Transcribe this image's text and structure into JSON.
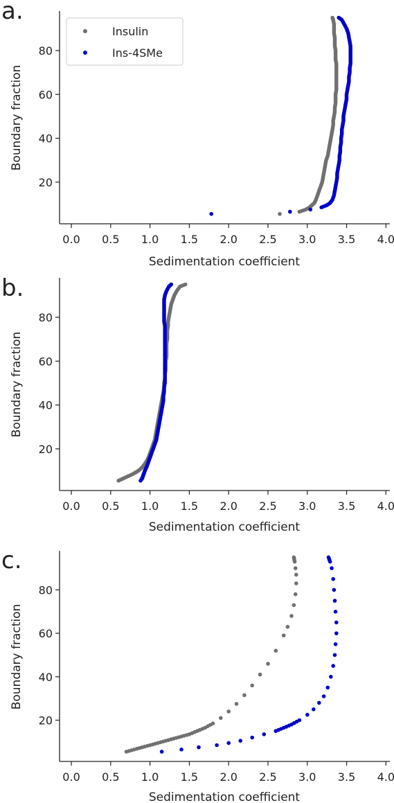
{
  "colors": {
    "insulin": "#707070",
    "ins4sme": "#0000c8",
    "axis": "#222222"
  },
  "chart_data": [
    {
      "type": "scatter",
      "panel_label": "a.",
      "xlabel": "Sedimentation coefficient",
      "ylabel": "Boundary fraction",
      "xlim": [
        -0.15,
        4.05
      ],
      "ylim": [
        1,
        98
      ],
      "xticks": [
        "0.0",
        "0.5",
        "1.0",
        "1.5",
        "2.0",
        "2.5",
        "3.0",
        "3.5",
        "4.0"
      ],
      "yticks": [
        "20",
        "40",
        "60",
        "80"
      ],
      "grid": false,
      "legend": {
        "position": "top-left",
        "entries": [
          "Insulin",
          "Ins-4SMe"
        ]
      },
      "series": [
        {
          "name": "Insulin",
          "color_key": "insulin",
          "points": [
            [
              2.65,
              5.5
            ],
            [
              2.9,
              6.5
            ],
            [
              2.98,
              7.5
            ],
            [
              3.03,
              8.5
            ],
            [
              3.06,
              9.5
            ],
            [
              3.09,
              10.5
            ],
            [
              3.11,
              12
            ],
            [
              3.13,
              14
            ],
            [
              3.15,
              16
            ],
            [
              3.17,
              18
            ],
            [
              3.19,
              20
            ],
            [
              3.2,
              22
            ],
            [
              3.21,
              24
            ],
            [
              3.22,
              26
            ],
            [
              3.23,
              28
            ],
            [
              3.24,
              30
            ],
            [
              3.26,
              32
            ],
            [
              3.27,
              34
            ],
            [
              3.28,
              36
            ],
            [
              3.29,
              38
            ],
            [
              3.3,
              40
            ],
            [
              3.31,
              42
            ],
            [
              3.32,
              44
            ],
            [
              3.33,
              46
            ],
            [
              3.33,
              48
            ],
            [
              3.34,
              50
            ],
            [
              3.35,
              52
            ],
            [
              3.35,
              54
            ],
            [
              3.36,
              56
            ],
            [
              3.36,
              58
            ],
            [
              3.36,
              60
            ],
            [
              3.37,
              62
            ],
            [
              3.37,
              64
            ],
            [
              3.37,
              66
            ],
            [
              3.37,
              68
            ],
            [
              3.37,
              70
            ],
            [
              3.37,
              72
            ],
            [
              3.37,
              74
            ],
            [
              3.36,
              76
            ],
            [
              3.36,
              78
            ],
            [
              3.36,
              80
            ],
            [
              3.35,
              82
            ],
            [
              3.35,
              84
            ],
            [
              3.35,
              86
            ],
            [
              3.34,
              88
            ],
            [
              3.34,
              90
            ],
            [
              3.34,
              92
            ],
            [
              3.33,
              94
            ],
            [
              3.32,
              95
            ]
          ]
        },
        {
          "name": "Ins-4SMe",
          "color_key": "ins4sme",
          "points": [
            [
              1.78,
              5.5
            ],
            [
              2.78,
              6.5
            ],
            [
              3.04,
              7.5
            ],
            [
              3.18,
              8.5
            ],
            [
              3.25,
              9.5
            ],
            [
              3.29,
              10.5
            ],
            [
              3.32,
              12
            ],
            [
              3.34,
              14
            ],
            [
              3.35,
              16
            ],
            [
              3.36,
              18
            ],
            [
              3.37,
              20
            ],
            [
              3.38,
              22
            ],
            [
              3.38,
              24
            ],
            [
              3.39,
              26
            ],
            [
              3.4,
              28
            ],
            [
              3.41,
              30
            ],
            [
              3.41,
              32
            ],
            [
              3.42,
              34
            ],
            [
              3.42,
              36
            ],
            [
              3.43,
              38
            ],
            [
              3.43,
              40
            ],
            [
              3.44,
              42
            ],
            [
              3.44,
              44
            ],
            [
              3.45,
              46
            ],
            [
              3.46,
              48
            ],
            [
              3.46,
              50
            ],
            [
              3.47,
              52
            ],
            [
              3.48,
              54
            ],
            [
              3.49,
              56
            ],
            [
              3.5,
              58
            ],
            [
              3.5,
              60
            ],
            [
              3.51,
              62
            ],
            [
              3.52,
              64
            ],
            [
              3.53,
              66
            ],
            [
              3.53,
              68
            ],
            [
              3.54,
              70
            ],
            [
              3.54,
              72
            ],
            [
              3.55,
              74
            ],
            [
              3.55,
              76
            ],
            [
              3.55,
              78
            ],
            [
              3.55,
              80
            ],
            [
              3.55,
              82
            ],
            [
              3.54,
              84
            ],
            [
              3.53,
              86
            ],
            [
              3.52,
              88
            ],
            [
              3.5,
              90
            ],
            [
              3.47,
              92
            ],
            [
              3.44,
              94
            ],
            [
              3.4,
              95
            ]
          ]
        }
      ]
    },
    {
      "type": "scatter",
      "panel_label": "b.",
      "xlabel": "Sedimentation coefficient",
      "ylabel": "Boundary fraction",
      "xlim": [
        -0.15,
        4.05
      ],
      "ylim": [
        1,
        98
      ],
      "xticks": [
        "0.0",
        "0.5",
        "1.0",
        "1.5",
        "2.0",
        "2.5",
        "3.0",
        "3.5",
        "4.0"
      ],
      "yticks": [
        "20",
        "40",
        "60",
        "80"
      ],
      "grid": false,
      "series": [
        {
          "name": "Insulin",
          "color_key": "insulin",
          "points": [
            [
              0.6,
              5.5
            ],
            [
              0.66,
              6.5
            ],
            [
              0.72,
              7.5
            ],
            [
              0.78,
              8.5
            ],
            [
              0.83,
              9.5
            ],
            [
              0.87,
              10.5
            ],
            [
              0.91,
              12
            ],
            [
              0.95,
              14
            ],
            [
              0.98,
              16
            ],
            [
              1.0,
              18
            ],
            [
              1.02,
              20
            ],
            [
              1.04,
              22
            ],
            [
              1.06,
              24
            ],
            [
              1.07,
              26
            ],
            [
              1.08,
              28
            ],
            [
              1.09,
              30
            ],
            [
              1.1,
              32
            ],
            [
              1.11,
              34
            ],
            [
              1.12,
              36
            ],
            [
              1.13,
              38
            ],
            [
              1.14,
              40
            ],
            [
              1.15,
              42
            ],
            [
              1.16,
              44
            ],
            [
              1.17,
              46
            ],
            [
              1.18,
              48
            ],
            [
              1.18,
              50
            ],
            [
              1.19,
              52
            ],
            [
              1.19,
              54
            ],
            [
              1.2,
              56
            ],
            [
              1.2,
              58
            ],
            [
              1.2,
              60
            ],
            [
              1.21,
              62
            ],
            [
              1.21,
              64
            ],
            [
              1.21,
              66
            ],
            [
              1.21,
              68
            ],
            [
              1.22,
              70
            ],
            [
              1.22,
              72
            ],
            [
              1.22,
              74
            ],
            [
              1.23,
              76
            ],
            [
              1.23,
              78
            ],
            [
              1.24,
              80
            ],
            [
              1.25,
              82
            ],
            [
              1.26,
              84
            ],
            [
              1.27,
              86
            ],
            [
              1.29,
              88
            ],
            [
              1.31,
              90
            ],
            [
              1.34,
              92
            ],
            [
              1.38,
              94
            ],
            [
              1.45,
              95
            ]
          ]
        },
        {
          "name": "Ins-4SMe",
          "color_key": "ins4sme",
          "points": [
            [
              0.88,
              5.5
            ],
            [
              0.9,
              6.5
            ],
            [
              0.91,
              7.5
            ],
            [
              0.92,
              8.5
            ],
            [
              0.93,
              9.5
            ],
            [
              0.94,
              10.5
            ],
            [
              0.96,
              12
            ],
            [
              0.98,
              14
            ],
            [
              1.0,
              16
            ],
            [
              1.02,
              18
            ],
            [
              1.04,
              20
            ],
            [
              1.06,
              22
            ],
            [
              1.08,
              24
            ],
            [
              1.09,
              26
            ],
            [
              1.1,
              28
            ],
            [
              1.11,
              30
            ],
            [
              1.12,
              32
            ],
            [
              1.13,
              34
            ],
            [
              1.14,
              36
            ],
            [
              1.15,
              38
            ],
            [
              1.16,
              40
            ],
            [
              1.17,
              42
            ],
            [
              1.17,
              44
            ],
            [
              1.18,
              46
            ],
            [
              1.18,
              48
            ],
            [
              1.19,
              50
            ],
            [
              1.19,
              52
            ],
            [
              1.19,
              54
            ],
            [
              1.19,
              56
            ],
            [
              1.19,
              58
            ],
            [
              1.19,
              60
            ],
            [
              1.19,
              62
            ],
            [
              1.19,
              64
            ],
            [
              1.19,
              66
            ],
            [
              1.19,
              68
            ],
            [
              1.19,
              70
            ],
            [
              1.19,
              72
            ],
            [
              1.19,
              74
            ],
            [
              1.19,
              76
            ],
            [
              1.18,
              78
            ],
            [
              1.18,
              80
            ],
            [
              1.18,
              82
            ],
            [
              1.18,
              84
            ],
            [
              1.18,
              86
            ],
            [
              1.18,
              88
            ],
            [
              1.19,
              90
            ],
            [
              1.21,
              92
            ],
            [
              1.24,
              94
            ],
            [
              1.27,
              95
            ]
          ]
        }
      ]
    },
    {
      "type": "scatter",
      "panel_label": "c.",
      "xlabel": "Sedimentation coefficient",
      "ylabel": "Boundary fraction",
      "xlim": [
        -0.15,
        4.05
      ],
      "ylim": [
        1,
        98
      ],
      "xticks": [
        "0.0",
        "0.5",
        "1.0",
        "1.5",
        "2.0",
        "2.5",
        "3.0",
        "3.5",
        "4.0"
      ],
      "yticks": [
        "20",
        "40",
        "60",
        "80"
      ],
      "grid": false,
      "series": [
        {
          "name": "Insulin",
          "color_key": "insulin",
          "points": [
            [
              0.7,
              5.5
            ],
            [
              0.8,
              6.5
            ],
            [
              0.9,
              7.5
            ],
            [
              1.0,
              8.5
            ],
            [
              1.1,
              9.5
            ],
            [
              1.2,
              10.5
            ],
            [
              1.3,
              11.5
            ],
            [
              1.4,
              12.5
            ],
            [
              1.5,
              13.5
            ],
            [
              1.6,
              15
            ],
            [
              1.7,
              16.5
            ],
            [
              1.8,
              18.5
            ],
            [
              1.9,
              21
            ],
            [
              2.0,
              24
            ],
            [
              2.1,
              27.5
            ],
            [
              2.2,
              31.5
            ],
            [
              2.3,
              36
            ],
            [
              2.4,
              41
            ],
            [
              2.5,
              46
            ],
            [
              2.6,
              52
            ],
            [
              2.7,
              59
            ],
            [
              2.75,
              63
            ],
            [
              2.8,
              68
            ],
            [
              2.83,
              73
            ],
            [
              2.85,
              78
            ],
            [
              2.86,
              83
            ],
            [
              2.86,
              87
            ],
            [
              2.85,
              90
            ],
            [
              2.84,
              93
            ],
            [
              2.83,
              95
            ]
          ]
        },
        {
          "name": "Ins-4SMe",
          "color_key": "ins4sme",
          "points": [
            [
              1.15,
              5.5
            ],
            [
              1.4,
              6.5
            ],
            [
              1.62,
              7.5
            ],
            [
              1.85,
              8.5
            ],
            [
              2.0,
              9.5
            ],
            [
              2.15,
              10.5
            ],
            [
              2.3,
              12
            ],
            [
              2.45,
              13.5
            ],
            [
              2.6,
              15
            ],
            [
              2.7,
              16.5
            ],
            [
              2.8,
              18
            ],
            [
              2.9,
              20
            ],
            [
              3.0,
              22.5
            ],
            [
              3.08,
              25
            ],
            [
              3.15,
              28
            ],
            [
              3.21,
              31
            ],
            [
              3.26,
              35
            ],
            [
              3.3,
              40
            ],
            [
              3.33,
              45
            ],
            [
              3.35,
              50
            ],
            [
              3.36,
              55
            ],
            [
              3.37,
              60
            ],
            [
              3.37,
              65
            ],
            [
              3.36,
              70
            ],
            [
              3.35,
              75
            ],
            [
              3.34,
              80
            ],
            [
              3.33,
              85
            ],
            [
              3.31,
              90
            ],
            [
              3.29,
              93
            ],
            [
              3.27,
              95
            ]
          ]
        }
      ]
    }
  ]
}
